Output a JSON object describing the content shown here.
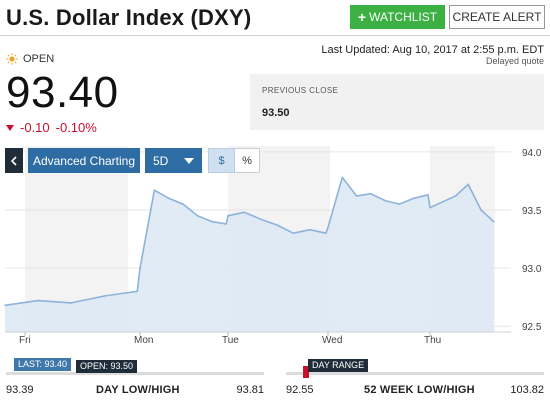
{
  "header": {
    "title": "U.S. Dollar Index (DXY)",
    "watchlist_label": "WATCHLIST",
    "alert_label": "CREATE ALERT"
  },
  "quote": {
    "status": "OPEN",
    "last_updated": "Last Updated: Aug 10, 2017 at 2:55 p.m. EDT",
    "delayed": "Delayed quote",
    "price": "93.40",
    "change": "-0.10",
    "change_pct": "-0.10%",
    "prev_close_label": "PREVIOUS CLOSE",
    "prev_close_value": "93.50"
  },
  "toolbar": {
    "back_icon": "chevron-left-icon",
    "advanced_label": "Advanced Charting",
    "range_label": "5D",
    "dollar_label": "$",
    "percent_label": "%"
  },
  "colors": {
    "accent": "#2e6da4",
    "positive_button": "#3cb043",
    "negative": "#c8102e",
    "line": "#8db3da",
    "area": "#dbe8f4"
  },
  "chart_data": {
    "type": "area",
    "x": [
      "Fri",
      "Fri",
      "Fri",
      "Fri",
      "Fri",
      "Mon",
      "Mon",
      "Mon",
      "Mon",
      "Mon",
      "Mon",
      "Mon",
      "Tue",
      "Tue",
      "Tue",
      "Tue",
      "Tue",
      "Tue",
      "Tue",
      "Wed",
      "Wed",
      "Wed",
      "Wed",
      "Wed",
      "Wed",
      "Wed",
      "Wed",
      "Thu",
      "Thu",
      "Thu",
      "Thu",
      "Thu",
      "Thu"
    ],
    "x_ticks": [
      "Fri",
      "Mon",
      "Tue",
      "Wed",
      "Thu"
    ],
    "y_ticks": [
      "94.0",
      "93.5",
      "93.0",
      "92.5"
    ],
    "ylim": [
      92.45,
      94.05
    ],
    "series": [
      {
        "values": [
          92.68,
          92.72,
          92.7,
          92.76,
          92.8,
          93.0,
          93.67,
          93.6,
          93.55,
          93.45,
          93.4,
          93.38,
          93.45,
          93.48,
          93.42,
          93.37,
          93.3,
          93.33,
          93.3,
          93.35,
          93.78,
          93.62,
          93.64,
          93.58,
          93.55,
          93.6,
          93.63,
          93.52,
          93.57,
          93.62,
          93.72,
          93.5,
          93.4
        ]
      }
    ]
  },
  "ranges": {
    "day": {
      "last_tag": "LAST: 93.40",
      "open_tag": "OPEN: 93.50",
      "low": "93.39",
      "label": "DAY LOW/HIGH",
      "high": "93.81",
      "last_fraction": 0.02,
      "open_fraction": 0.26
    },
    "week52": {
      "tag": "DAY RANGE",
      "low": "92.55",
      "label": "52 WEEK LOW/HIGH",
      "high": "103.82"
    }
  }
}
